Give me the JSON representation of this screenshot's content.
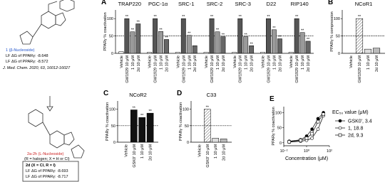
{
  "figure": {
    "compound1": {
      "label": "1 (β-Nucleoside)",
      "dg1": "LF ΔG of PPARγ: -8.648",
      "dg2": "LF ΔG of PPARγ: -8.572",
      "ref": "J. Med. Chem. 2020, 63, 16012-16027"
    },
    "compound2": {
      "label": "2a-2h (L-Nucleoside)",
      "note": "(R = halogen; X = H or Cl)",
      "box_title": "2d (X = Cl, R = I)",
      "dg1": "LF ΔG of PPARγ: -8.693",
      "dg2": "LF ΔG of PPARγ: -8.717"
    }
  },
  "chart_data": [
    {
      "type": "bar",
      "panel": "A",
      "ylabel": "PPARγ % coactivation",
      "ylim": [
        0,
        125
      ],
      "yticks": [
        0,
        50,
        100
      ],
      "reference_line": 50,
      "categories": [
        "TRAP220",
        "PGC-1α",
        "SRC-1",
        "SRC-2",
        "SRC-3",
        "D22",
        "RIP140"
      ],
      "series": [
        {
          "name": "Vehicle",
          "color": "#ffffff",
          "values": [
            5,
            3,
            3,
            3,
            3,
            3,
            3
          ],
          "significance": [
            null,
            null,
            null,
            null,
            null,
            null,
            null
          ]
        },
        {
          "name": "GW1929 10 μM",
          "color": "#555555",
          "values": [
            100,
            100,
            100,
            100,
            100,
            100,
            100
          ],
          "significance": [
            "**",
            "**",
            "**",
            "**",
            "**",
            "**",
            "**"
          ]
        },
        {
          "name": "1 10 μM",
          "color": "#9a9a9a",
          "values": [
            62,
            63,
            52,
            62,
            48,
            68,
            60
          ],
          "significance": [
            "**",
            "**",
            "**",
            "**",
            "**",
            "**",
            "**"
          ]
        },
        {
          "name": "2d 10 μM",
          "color": "#666666",
          "values": [
            85,
            40,
            22,
            48,
            22,
            42,
            35
          ],
          "significance": [
            "**",
            "**",
            null,
            "**",
            "**",
            "**",
            "**"
          ]
        }
      ]
    },
    {
      "type": "bar",
      "panel": "B",
      "ylabel": "PPARγ % compression",
      "ylim": [
        0,
        125
      ],
      "yticks": [
        0,
        50,
        100
      ],
      "reference_line": 50,
      "categories": [
        "NCoR1"
      ],
      "series": [
        {
          "name": "Vehicle",
          "color": "#ffffff",
          "values": [
            0
          ],
          "significance": [
            null
          ]
        },
        {
          "name": "GW1929 10 μM",
          "color": "#ffffff",
          "hatched": true,
          "values": [
            100
          ],
          "significance": [
            "**"
          ]
        },
        {
          "name": "1 10 μM",
          "color": "#dddddd",
          "values": [
            12
          ],
          "significance": [
            null
          ]
        },
        {
          "name": "2d 10 μM",
          "color": "#bbbbbb",
          "values": [
            15
          ],
          "significance": [
            null
          ]
        }
      ]
    },
    {
      "type": "bar",
      "panel": "C",
      "ylabel": "PPARγ % coactivation",
      "ylim": [
        0,
        125
      ],
      "yticks": [
        0,
        50,
        100
      ],
      "reference_line": 50,
      "categories": [
        "NCoR2"
      ],
      "series": [
        {
          "name": "Vehicle",
          "color": "#ffffff",
          "values": [
            0
          ],
          "significance": [
            null
          ]
        },
        {
          "name": "GSK0' 10 μM",
          "color": "#111111",
          "values": [
            98
          ],
          "significance": [
            "**"
          ]
        },
        {
          "name": "1 10 μM",
          "color": "#111111",
          "values": [
            75
          ],
          "significance": [
            "**"
          ]
        },
        {
          "name": "2d 10 μM",
          "color": "#111111",
          "values": [
            88
          ],
          "significance": [
            "**"
          ]
        }
      ]
    },
    {
      "type": "bar",
      "panel": "D",
      "ylabel": "PPARγ % coactivation",
      "ylim": [
        0,
        125
      ],
      "yticks": [
        0,
        50,
        100
      ],
      "reference_line": 50,
      "categories": [
        "C33"
      ],
      "series": [
        {
          "name": "Vehicle",
          "color": "#ffffff",
          "values": [
            0
          ],
          "significance": [
            null
          ]
        },
        {
          "name": "GSK0' 10 μM",
          "color": "#ffffff",
          "hatched": true,
          "values": [
            100
          ],
          "significance": [
            "**"
          ]
        },
        {
          "name": "1 10 μM",
          "color": "#dddddd",
          "values": [
            12
          ],
          "significance": [
            null
          ]
        },
        {
          "name": "2d 10 μM",
          "color": "#bbbbbb",
          "values": [
            10
          ],
          "significance": [
            null
          ]
        }
      ]
    },
    {
      "type": "line",
      "panel": "E",
      "ylabel": "PPARγ % coactivation",
      "xlabel": "Concentration (μM)",
      "log_x": true,
      "xlim": [
        0.01,
        100
      ],
      "xticks": [
        {
          "value": 0.01,
          "label": "10⁻²"
        },
        {
          "value": 1,
          "label": "10⁰"
        },
        {
          "value": 100,
          "label": "10²"
        }
      ],
      "ylim": [
        -10,
        120
      ],
      "yticks": [
        0,
        50,
        100
      ],
      "legend_title": "EC₅₀ value (μM)",
      "x": [
        0.03,
        0.3,
        1,
        3,
        10,
        30
      ],
      "series": [
        {
          "name": "GSK0', 3.4",
          "color": "#000000",
          "marker": "filled-circle",
          "values": [
            5,
            10,
            22,
            45,
            80,
            100
          ]
        },
        {
          "name": "1, 18.8",
          "color": "#000000",
          "marker": "open-circle",
          "values": [
            2,
            5,
            8,
            15,
            45,
            90
          ]
        },
        {
          "name": "2d, 9.3",
          "color": "#000000",
          "marker": "open-square",
          "values": [
            3,
            8,
            15,
            30,
            70,
            95
          ]
        }
      ]
    }
  ]
}
